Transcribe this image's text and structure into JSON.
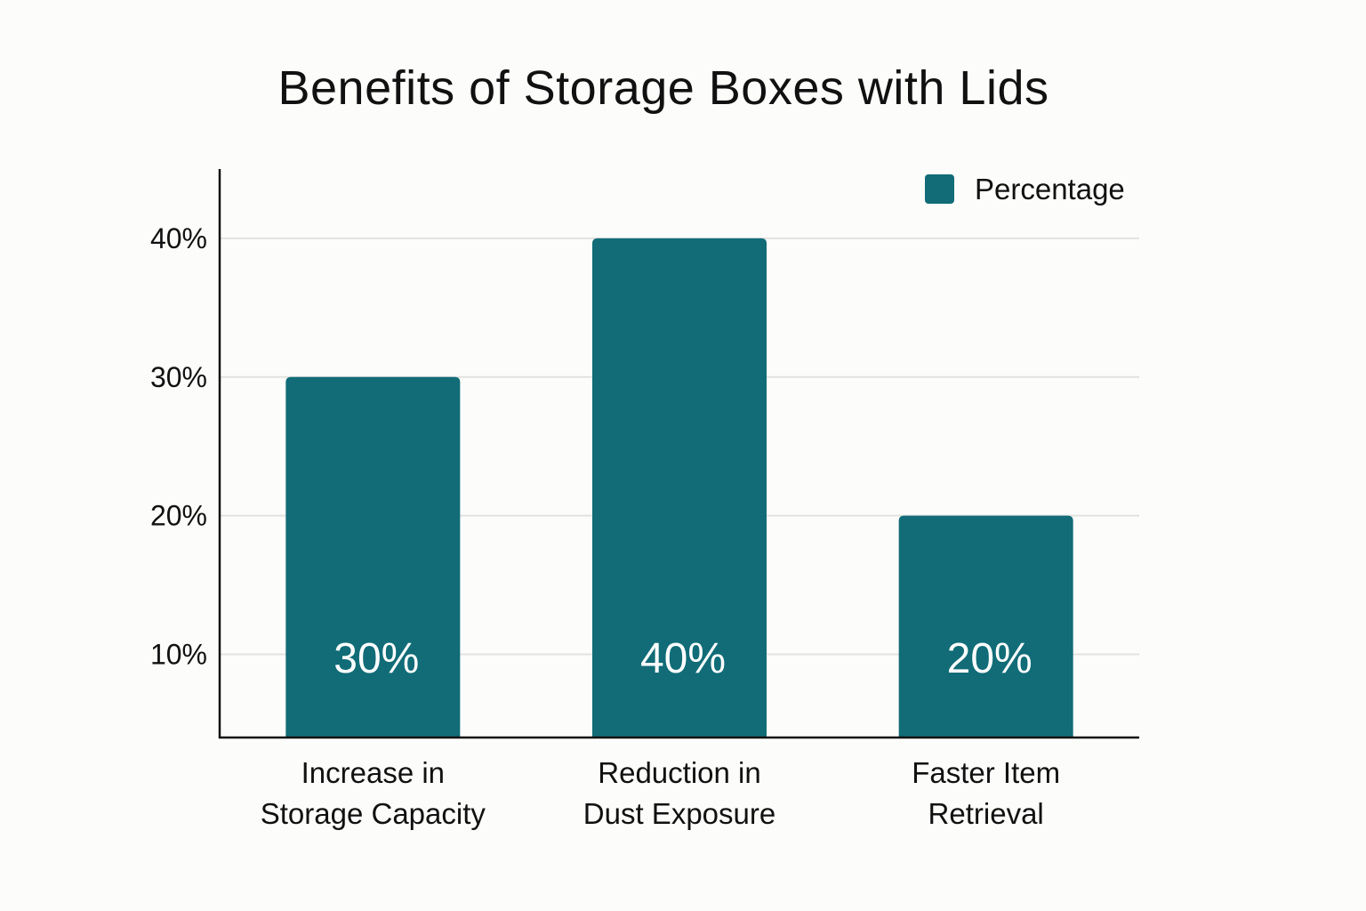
{
  "chart_data": {
    "type": "bar",
    "title": "Benefits of Storage Boxes with Lids",
    "categories": [
      [
        "Increase in",
        "Storage Capacity"
      ],
      [
        "Reduction in",
        "Dust Exposure"
      ],
      [
        "Faster Item",
        "Retrieval"
      ]
    ],
    "series": [
      {
        "name": "Percentage",
        "values": [
          30,
          40,
          20
        ],
        "data_labels": [
          "30%",
          "40%",
          "20%"
        ],
        "color": "#116c77"
      }
    ],
    "y_ticks": [
      {
        "value": 10,
        "label": "10%"
      },
      {
        "value": 20,
        "label": "20%"
      },
      {
        "value": 30,
        "label": "30%"
      },
      {
        "value": 40,
        "label": "40%"
      }
    ],
    "ylim": [
      4,
      45
    ],
    "grid": true,
    "legend_position": "top-right"
  }
}
